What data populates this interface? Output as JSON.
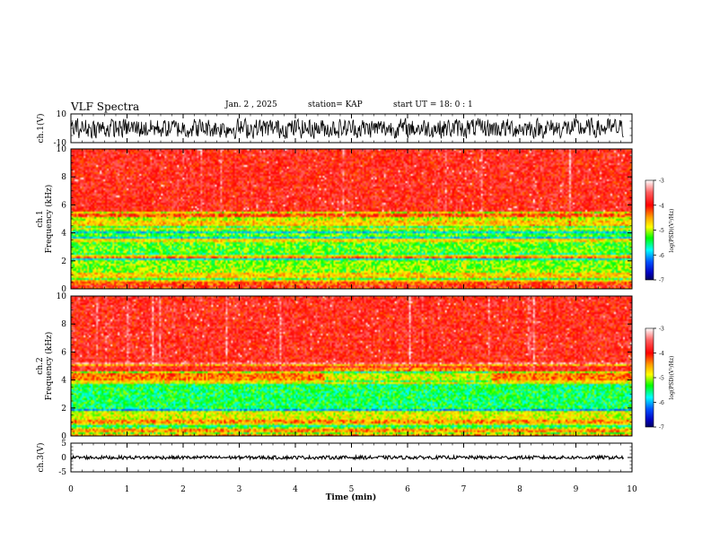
{
  "chart_data": {
    "type": "heatmap",
    "title": "VLF Spectra",
    "header": {
      "date": "Jan. 2 , 2025",
      "station": "station= KAP",
      "start": "start UT = 18: 0 : 1"
    },
    "x_axis": {
      "label": "Time (min)",
      "range": [
        0,
        10
      ],
      "ticks": [
        "0",
        "1",
        "2",
        "3",
        "4",
        "5",
        "6",
        "7",
        "8",
        "9",
        "10"
      ]
    },
    "panels": [
      {
        "name": "ch1-waveform",
        "type": "line",
        "ylabel": "ch.1(V)",
        "ylim": [
          -10,
          10
        ],
        "ytick_labels": [
          "10",
          "-10"
        ],
        "amplitude_range": [
          -8,
          8
        ]
      },
      {
        "name": "ch1-spectrogram",
        "type": "heatmap",
        "ylabel_top": "ch.1",
        "ylabel": "Frequency (kHz)",
        "ylim": [
          0,
          10
        ],
        "ytick_labels": [
          "0",
          "2",
          "4",
          "6",
          "8",
          "10"
        ],
        "colorbar": {
          "label": "log(PSD)(V²/Hz)",
          "range": [
            -7,
            -3
          ],
          "tick_labels": [
            "-3",
            "-4",
            "-5",
            "-6",
            "-7"
          ]
        },
        "bands": [
          {
            "from": 0,
            "to": 0.5,
            "level": -4.2
          },
          {
            "from": 0.5,
            "to": 1.2,
            "level": -4.6
          },
          {
            "from": 1.2,
            "to": 2.2,
            "level": -5.0
          },
          {
            "from": 2.2,
            "to": 2.6,
            "level": -4.7
          },
          {
            "from": 2.6,
            "to": 4.3,
            "level": -5.1
          },
          {
            "from": 4.3,
            "to": 4.9,
            "level": -4.6
          },
          {
            "from": 4.9,
            "to": 5.5,
            "level": -4.2
          },
          {
            "from": 5.5,
            "to": 10,
            "level": -3.9
          }
        ]
      },
      {
        "name": "ch2-spectrogram",
        "type": "heatmap",
        "ylabel_top": "ch.2",
        "ylabel": "Frequency (kHz)",
        "ylim": [
          0,
          10
        ],
        "ytick_labels": [
          "0",
          "2",
          "4",
          "6",
          "8",
          "10"
        ],
        "colorbar": {
          "label": "log(PSD)(V²/Hz)",
          "range": [
            -7,
            -3
          ],
          "tick_labels": [
            "-3",
            "-4",
            "-5",
            "-6",
            "-7"
          ]
        },
        "bands": [
          {
            "from": 0,
            "to": 0.6,
            "level": -4.4
          },
          {
            "from": 0.6,
            "to": 1.8,
            "level": -4.8
          },
          {
            "from": 1.8,
            "to": 3.5,
            "level": -5.3
          },
          {
            "from": 3.5,
            "to": 4.0,
            "level": -4.7
          },
          {
            "from": 4.0,
            "to": 4.8,
            "level": -4.3
          },
          {
            "from": 4.8,
            "to": 10,
            "level": -3.9
          }
        ]
      },
      {
        "name": "ch3-waveform",
        "type": "line",
        "ylabel": "ch.3(V)",
        "ylim": [
          -5,
          5
        ],
        "ytick_labels": [
          "5",
          "0",
          "-5"
        ],
        "amplitude_range": [
          -0.6,
          0.6
        ]
      }
    ]
  }
}
